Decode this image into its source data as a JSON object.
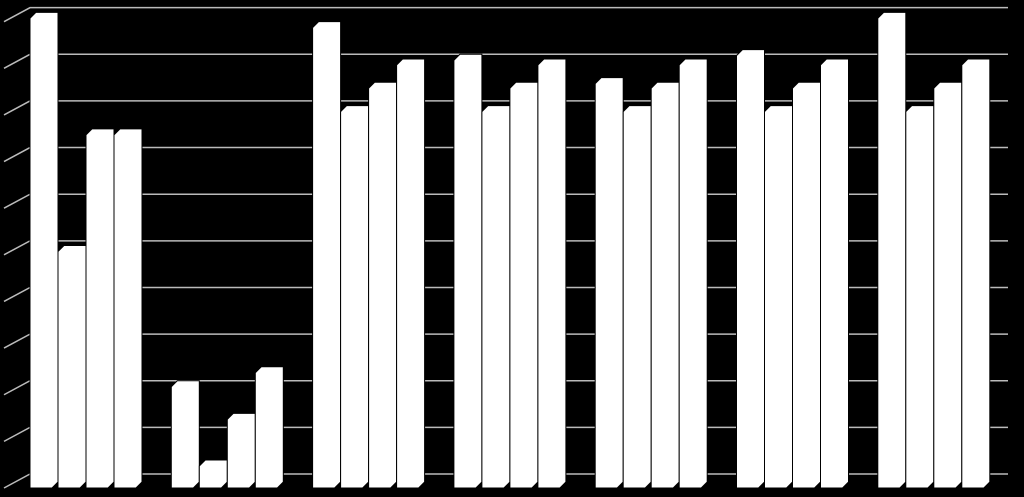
{
  "chart_data": {
    "type": "bar",
    "categories": [
      null,
      null,
      null,
      null,
      null,
      null,
      null
    ],
    "series": [
      {
        "color": "#ffffff",
        "values": [
          10.2,
          2.3,
          10.0,
          9.3,
          8.8,
          9.4,
          10.2
        ]
      },
      {
        "color": "#ffffff",
        "values": [
          5.2,
          0.6,
          8.2,
          8.2,
          8.2,
          8.2,
          8.2
        ]
      },
      {
        "color": "#ffffff",
        "values": [
          7.7,
          1.6,
          8.7,
          8.7,
          8.7,
          8.7,
          8.7
        ]
      },
      {
        "color": "#ffffff",
        "values": [
          7.7,
          2.6,
          9.2,
          9.2,
          9.2,
          9.2,
          9.2
        ]
      }
    ],
    "ylim": [
      0,
      10.4
    ],
    "yticks": [
      0,
      1,
      2,
      3,
      4,
      5,
      6,
      7,
      8,
      9,
      10
    ],
    "grid": true
  }
}
